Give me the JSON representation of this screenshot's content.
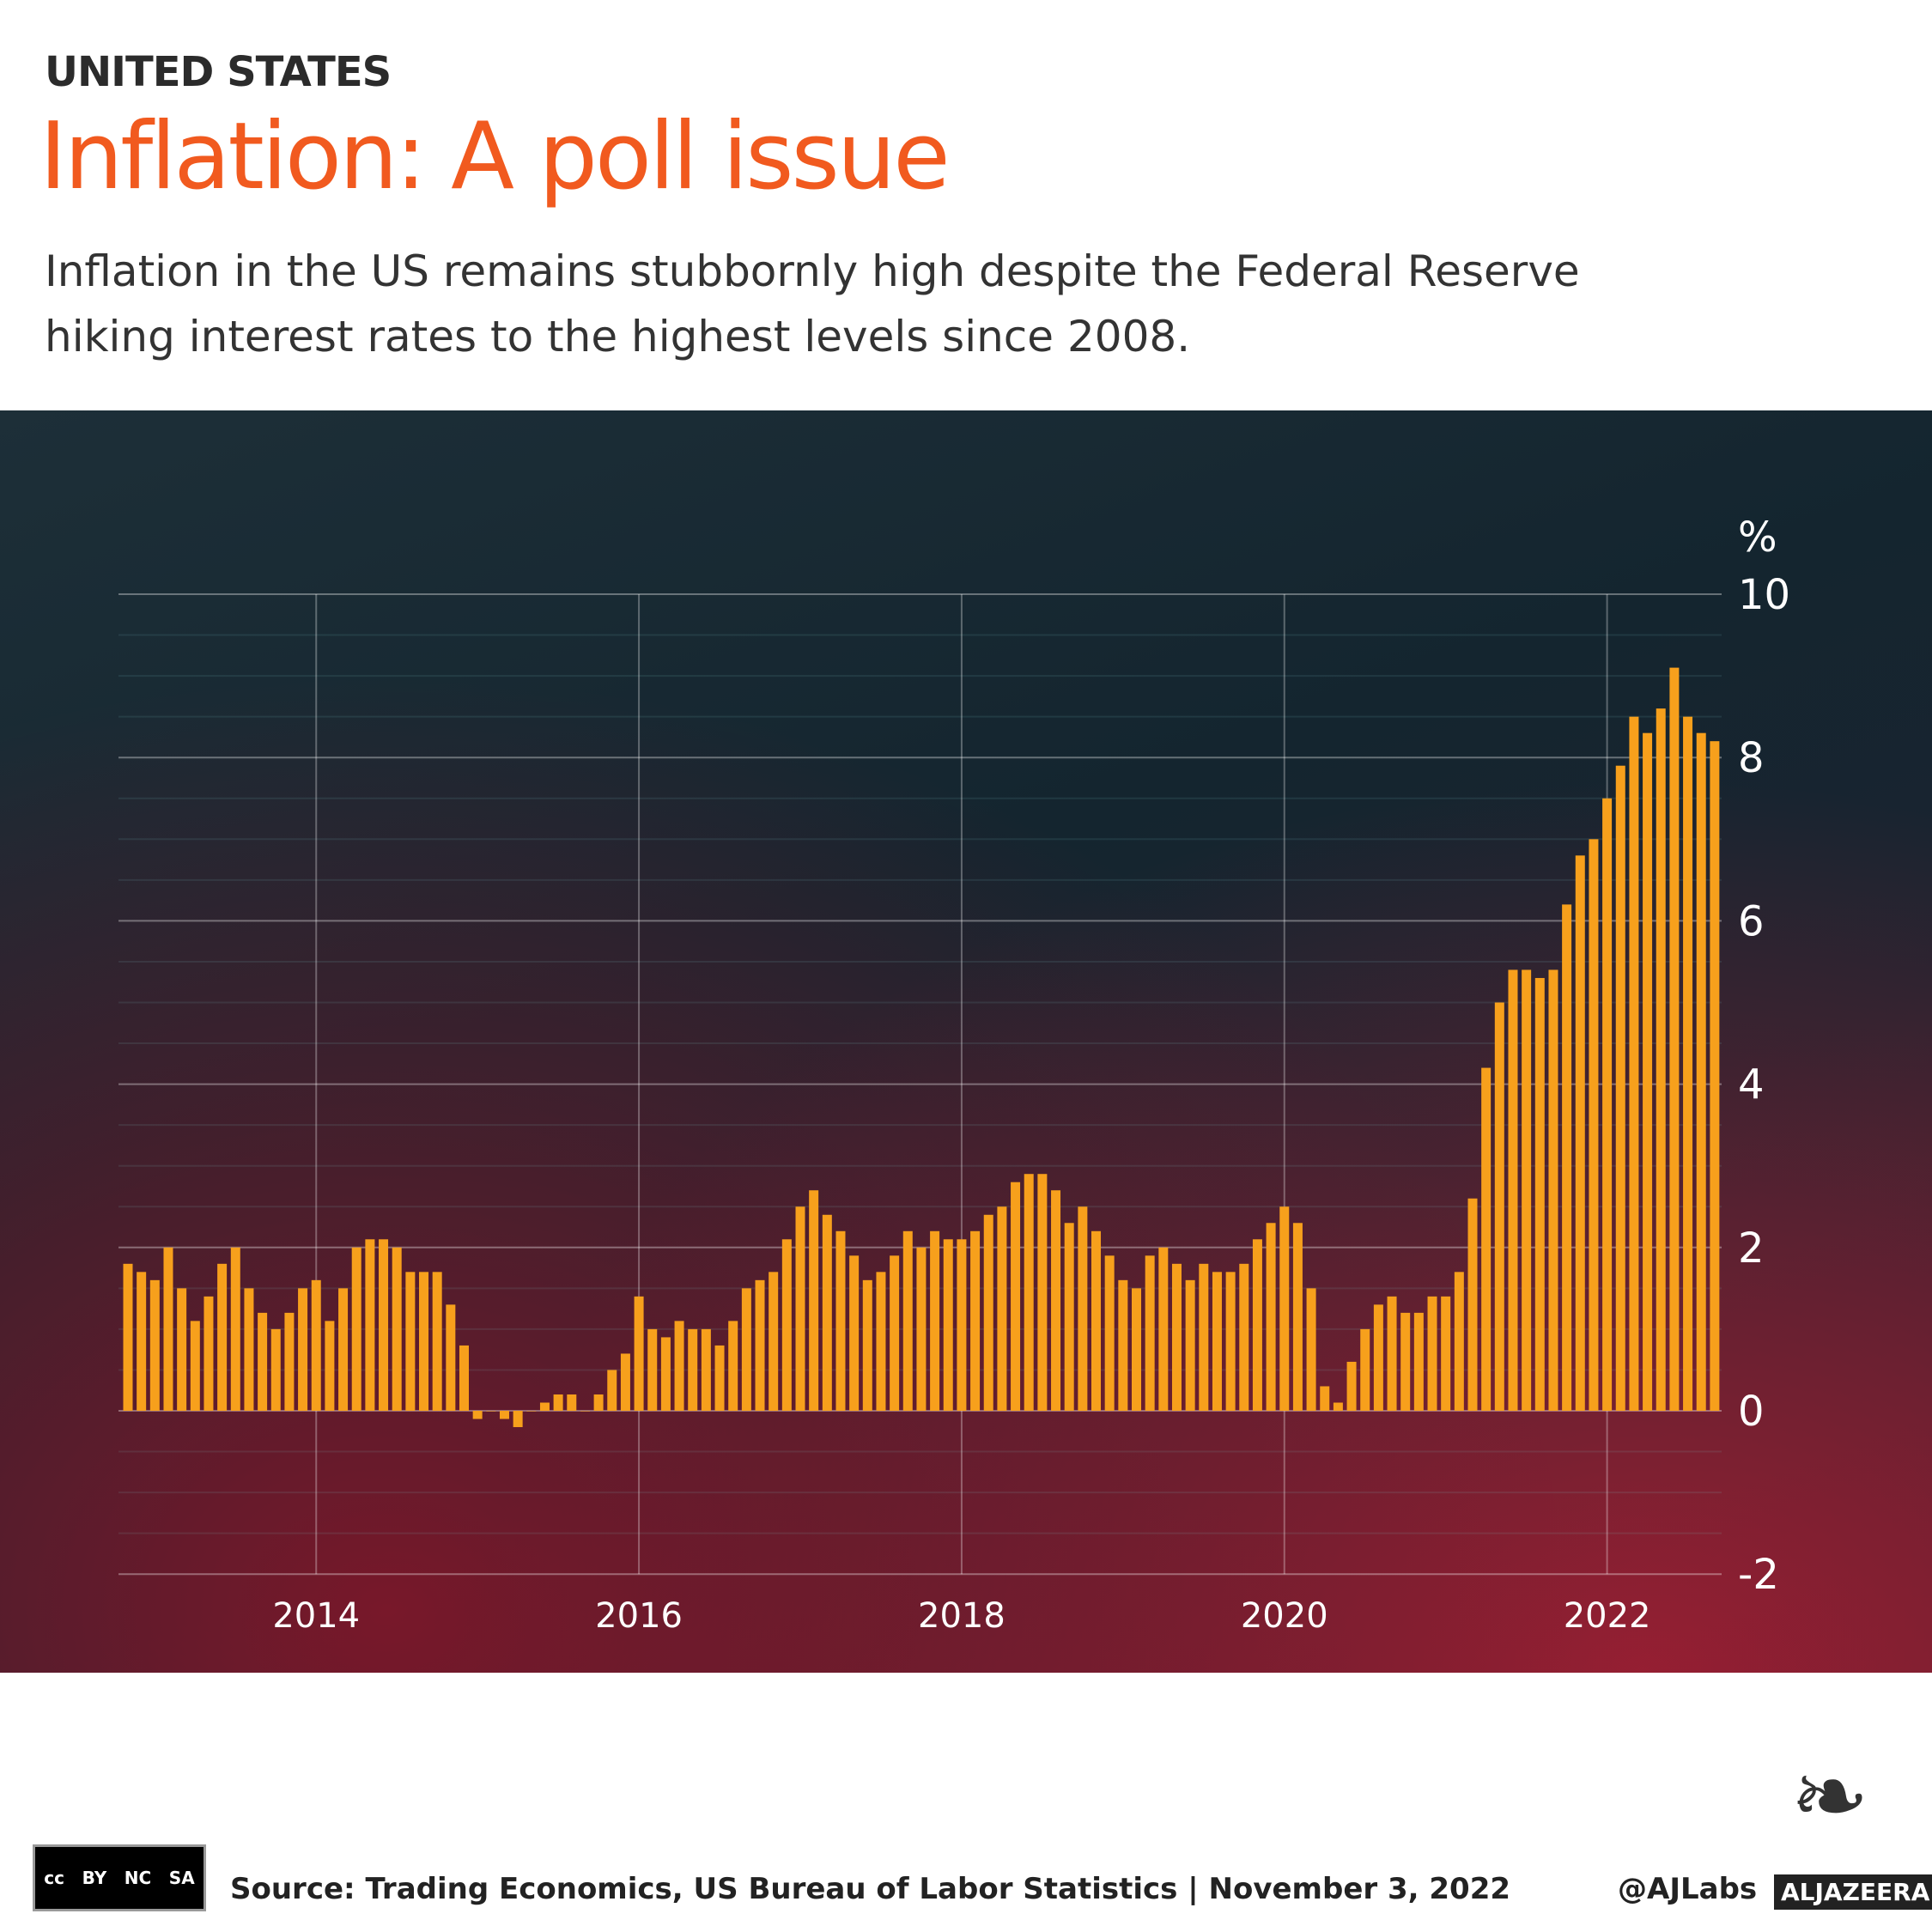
{
  "header": {
    "kicker": "UNITED STATES",
    "title": "Inflation: A poll issue",
    "subtitle_line1": "Inflation in the US remains stubbornly high despite the Federal Reserve",
    "subtitle_line2": "hiking interest rates to the highest levels since 2008."
  },
  "chart_data": {
    "type": "bar",
    "title": "",
    "ylabel": "%",
    "ylim": [
      -2,
      10
    ],
    "yticks": [
      "10",
      "8",
      "6",
      "4",
      "2",
      "0",
      "-2"
    ],
    "xticks": [
      "2014",
      "2016",
      "2018",
      "2020",
      "2022"
    ],
    "grid": true,
    "bar_color": "#f7a01c",
    "start_month": "2012-11",
    "values": [
      1.8,
      1.7,
      1.6,
      2.0,
      1.5,
      1.1,
      1.4,
      1.8,
      2.0,
      1.5,
      1.2,
      1.0,
      1.2,
      1.5,
      1.6,
      1.1,
      1.5,
      2.0,
      2.1,
      2.1,
      2.0,
      1.7,
      1.7,
      1.7,
      1.3,
      0.8,
      -0.1,
      0.0,
      -0.1,
      -0.2,
      0.0,
      0.1,
      0.2,
      0.2,
      0.0,
      0.2,
      0.5,
      0.7,
      1.4,
      1.0,
      0.9,
      1.1,
      1.0,
      1.0,
      0.8,
      1.1,
      1.5,
      1.6,
      1.7,
      2.1,
      2.5,
      2.7,
      2.4,
      2.2,
      1.9,
      1.6,
      1.7,
      1.9,
      2.2,
      2.0,
      2.2,
      2.1,
      2.1,
      2.2,
      2.4,
      2.5,
      2.8,
      2.9,
      2.9,
      2.7,
      2.3,
      2.5,
      2.2,
      1.9,
      1.6,
      1.5,
      1.9,
      2.0,
      1.8,
      1.6,
      1.8,
      1.7,
      1.7,
      1.8,
      2.1,
      2.3,
      2.5,
      2.3,
      1.5,
      0.3,
      0.1,
      0.6,
      1.0,
      1.3,
      1.4,
      1.2,
      1.2,
      1.4,
      1.4,
      1.7,
      2.6,
      4.2,
      5.0,
      5.4,
      5.4,
      5.3,
      5.4,
      6.2,
      6.8,
      7.0,
      7.5,
      7.9,
      8.5,
      8.3,
      8.6,
      9.1,
      8.5,
      8.3,
      8.2
    ]
  },
  "footer": {
    "source": "Source: Trading Economics, US Bureau of Labor Statistics  |  November 3, 2022",
    "handle": "@AJLabs",
    "brand": "ALJAZEERA",
    "license": "CC BY NC SA"
  }
}
